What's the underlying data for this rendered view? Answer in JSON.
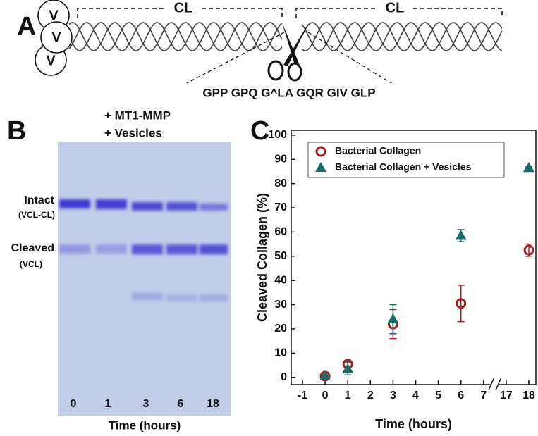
{
  "panel_a": {
    "label": "A",
    "vesicle_labels": [
      "V",
      "V",
      "V"
    ],
    "domain_labels": [
      "CL",
      "CL"
    ],
    "sequence": "GPP GPQ G^LA GQR GIV GLP"
  },
  "panel_b": {
    "label": "B",
    "treatments": [
      "+ MT1-MMP",
      "+ Vesicles"
    ],
    "bands": [
      {
        "name": "Intact",
        "subname": "(VCL-CL)"
      },
      {
        "name": "Cleaved",
        "subname": "(VCL)"
      }
    ],
    "lanes": [
      "0",
      "1",
      "3",
      "6",
      "18"
    ],
    "x_label": "Time (hours)"
  },
  "chart_data": {
    "type": "scatter",
    "panel_label": "C",
    "x_label": "Time (hours)",
    "y_label": "Cleaved Collagen (%)",
    "categories": [
      "-1",
      "0",
      "1",
      "2",
      "3",
      "4",
      "5",
      "6",
      "7",
      "17",
      "18"
    ],
    "series": [
      {
        "name": "Bacterial Collagen",
        "color": "#a31f24",
        "marker": "circle",
        "values": [
          null,
          0.5,
          5.5,
          null,
          22,
          null,
          null,
          30.5,
          null,
          null,
          52.5
        ],
        "errors": [
          null,
          0.5,
          1,
          null,
          6,
          null,
          null,
          7.5,
          null,
          null,
          2.5
        ]
      },
      {
        "name": "Bacterial Collagen + Vesicles",
        "color": "#1a6b63",
        "marker": "triangle",
        "values": [
          null,
          0.5,
          3.5,
          null,
          24,
          null,
          null,
          58.5,
          null,
          null,
          86.5
        ],
        "errors": [
          null,
          0.5,
          2.5,
          null,
          6,
          null,
          null,
          2.5,
          null,
          null,
          0.5
        ]
      }
    ],
    "ylim": [
      -3,
      102
    ],
    "yticks": [
      0,
      10,
      20,
      30,
      40,
      50,
      60,
      70,
      80,
      90,
      100
    ],
    "legend": "upper left"
  }
}
